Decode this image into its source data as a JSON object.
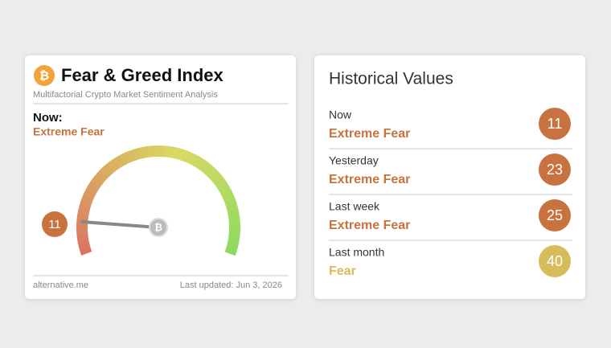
{
  "left_card": {
    "title": "Fear & Greed Index",
    "subtitle": "Multifactorial Crypto Market Sentiment Analysis",
    "now_label": "Now:",
    "now_class": "Extreme Fear",
    "now_color": "#c8733f",
    "gauge": {
      "value": 11,
      "range": [
        0,
        100
      ]
    },
    "source": "alternative.me",
    "updated": "Last updated: Jun 3, 2026"
  },
  "right_card": {
    "title": "Historical Values",
    "rows": [
      {
        "label": "Now",
        "classification": "Extreme Fear",
        "value": 11,
        "color": "#c8733f"
      },
      {
        "label": "Yesterday",
        "classification": "Extreme Fear",
        "value": 23,
        "color": "#c8733f"
      },
      {
        "label": "Last week",
        "classification": "Extreme Fear",
        "value": 25,
        "color": "#c8733f"
      },
      {
        "label": "Last month",
        "classification": "Fear",
        "value": 40,
        "color": "#d7bc5c"
      }
    ]
  }
}
